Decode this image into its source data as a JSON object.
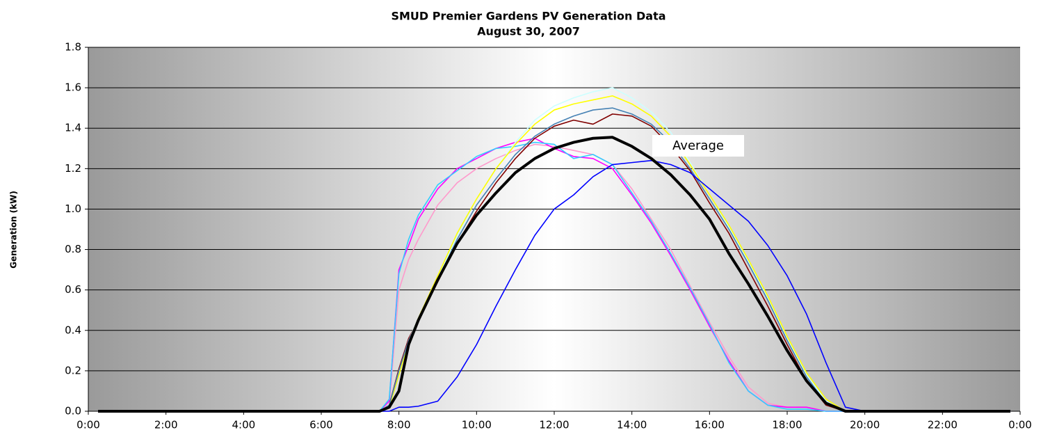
{
  "chart_data": {
    "type": "line",
    "title": "SMUD Premier Gardens PV Generation Data",
    "subtitle": "August 30, 2007",
    "y_label": "Generation (kW)",
    "annotation": "Average",
    "x": [
      0.25,
      2,
      4,
      6,
      7,
      7.5,
      7.75,
      8,
      8.25,
      8.5,
      9,
      9.5,
      10,
      10.5,
      11,
      11.5,
      12,
      12.5,
      13,
      13.5,
      14,
      14.5,
      15,
      15.5,
      16,
      16.5,
      17,
      17.5,
      18,
      18.5,
      19,
      19.5,
      20,
      22,
      23.75
    ],
    "series": [
      {
        "color": "#ff99cc",
        "values": [
          0,
          0,
          0,
          0,
          0,
          0,
          0.03,
          0.6,
          0.75,
          0.85,
          1.02,
          1.13,
          1.2,
          1.25,
          1.29,
          1.32,
          1.31,
          1.29,
          1.27,
          1.22,
          1.1,
          0.95,
          0.8,
          0.62,
          0.44,
          0.27,
          0.12,
          0.04,
          0.02,
          0.02,
          0,
          0,
          0,
          0,
          0
        ]
      },
      {
        "color": "#ff00ff",
        "values": [
          0,
          0,
          0,
          0,
          0,
          0,
          0.05,
          0.7,
          0.82,
          0.95,
          1.1,
          1.2,
          1.25,
          1.3,
          1.33,
          1.35,
          1.3,
          1.26,
          1.25,
          1.2,
          1.07,
          0.93,
          0.77,
          0.6,
          0.42,
          0.25,
          0.1,
          0.03,
          0.02,
          0.02,
          0,
          0,
          0,
          0,
          0
        ]
      },
      {
        "color": "#33ccff",
        "values": [
          0,
          0,
          0,
          0,
          0,
          0,
          0.06,
          0.68,
          0.85,
          0.97,
          1.12,
          1.19,
          1.26,
          1.3,
          1.31,
          1.33,
          1.32,
          1.25,
          1.27,
          1.22,
          1.08,
          0.94,
          0.78,
          0.61,
          0.43,
          0.24,
          0.1,
          0.03,
          0.01,
          0.01,
          0,
          0,
          0,
          0,
          0
        ]
      },
      {
        "color": "#800000",
        "values": [
          0,
          0,
          0,
          0,
          0,
          0,
          0.03,
          0.21,
          0.36,
          0.45,
          0.64,
          0.83,
          0.99,
          1.13,
          1.25,
          1.35,
          1.41,
          1.44,
          1.42,
          1.47,
          1.46,
          1.41,
          1.31,
          1.19,
          1.03,
          0.88,
          0.7,
          0.52,
          0.33,
          0.15,
          0.03,
          0,
          0,
          0,
          0
        ]
      },
      {
        "color": "#ccffff",
        "values": [
          0,
          0,
          0,
          0,
          0,
          0,
          0.02,
          0.19,
          0.35,
          0.46,
          0.66,
          0.87,
          1.05,
          1.2,
          1.33,
          1.44,
          1.51,
          1.55,
          1.58,
          1.6,
          1.55,
          1.48,
          1.38,
          1.23,
          1.07,
          0.91,
          0.74,
          0.56,
          0.36,
          0.18,
          0.05,
          0,
          0,
          0,
          0
        ]
      },
      {
        "color": "#ffff00",
        "values": [
          0,
          0,
          0,
          0,
          0,
          0,
          0.02,
          0.18,
          0.34,
          0.46,
          0.67,
          0.88,
          1.05,
          1.2,
          1.32,
          1.42,
          1.49,
          1.52,
          1.54,
          1.56,
          1.52,
          1.46,
          1.36,
          1.22,
          1.07,
          0.92,
          0.75,
          0.57,
          0.37,
          0.19,
          0.06,
          0,
          0,
          0,
          0
        ]
      },
      {
        "color": "#4682b4",
        "values": [
          0,
          0,
          0,
          0,
          0,
          0,
          0.03,
          0.2,
          0.35,
          0.45,
          0.65,
          0.85,
          1.02,
          1.15,
          1.27,
          1.36,
          1.42,
          1.46,
          1.49,
          1.5,
          1.47,
          1.42,
          1.33,
          1.2,
          1.05,
          0.9,
          0.73,
          0.55,
          0.35,
          0.17,
          0.04,
          0,
          0,
          0,
          0
        ]
      },
      {
        "color": "#0000ff",
        "values": [
          0,
          0,
          0,
          0,
          0,
          0,
          0,
          0.02,
          0.02,
          0.025,
          0.05,
          0.17,
          0.33,
          0.52,
          0.7,
          0.87,
          1.0,
          1.07,
          1.16,
          1.22,
          1.23,
          1.24,
          1.22,
          1.18,
          1.1,
          1.02,
          0.94,
          0.82,
          0.67,
          0.48,
          0.24,
          0.02,
          0,
          0,
          0
        ]
      },
      {
        "name": "Average",
        "color": "#000000",
        "values": [
          0,
          0,
          0,
          0,
          0,
          0,
          0.02,
          0.1,
          0.33,
          0.45,
          0.65,
          0.83,
          0.97,
          1.08,
          1.18,
          1.25,
          1.3,
          1.33,
          1.35,
          1.355,
          1.31,
          1.25,
          1.17,
          1.07,
          0.95,
          0.78,
          0.63,
          0.47,
          0.3,
          0.15,
          0.04,
          0,
          0,
          0,
          0
        ]
      }
    ],
    "xlim": [
      0,
      24
    ],
    "xticks": [
      {
        "value": 0,
        "label": "0:00"
      },
      {
        "value": 2,
        "label": "2:00"
      },
      {
        "value": 4,
        "label": "4:00"
      },
      {
        "value": 6,
        "label": "6:00"
      },
      {
        "value": 8,
        "label": "8:00"
      },
      {
        "value": 10,
        "label": "10:00"
      },
      {
        "value": 12,
        "label": "12:00"
      },
      {
        "value": 14,
        "label": "14:00"
      },
      {
        "value": 16,
        "label": "16:00"
      },
      {
        "value": 18,
        "label": "18:00"
      },
      {
        "value": 20,
        "label": "20:00"
      },
      {
        "value": 22,
        "label": "22:00"
      },
      {
        "value": 24,
        "label": "0:00"
      }
    ],
    "ylim": [
      0,
      1.8
    ],
    "yticks": [
      {
        "value": 0,
        "label": "0.0"
      },
      0.2,
      0.4,
      0.6,
      0.8,
      {
        "value": 1,
        "label": "1.0"
      },
      1.2,
      1.4,
      1.6,
      1.8
    ],
    "grid": true
  }
}
